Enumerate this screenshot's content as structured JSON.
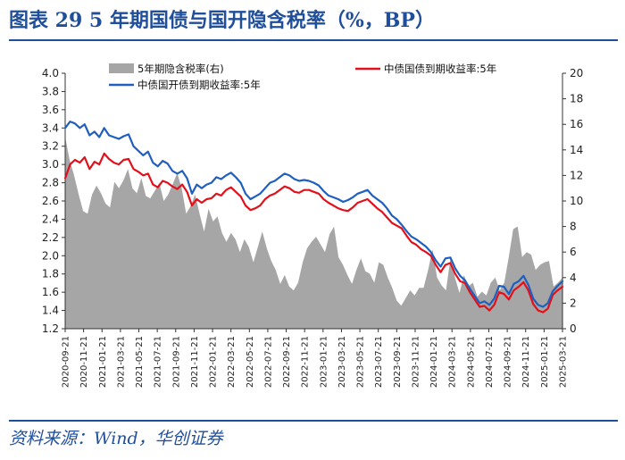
{
  "figure": {
    "title": "图表 29   5 年期国债与国开隐含税率（%，BP）",
    "source": "资料来源：Wind，华创证券"
  },
  "chart_data": {
    "type": "line+area",
    "title": "5 年期国债与国开隐含税率（%，BP）",
    "left_axis": {
      "label": "%",
      "range": [
        1.2,
        4.0
      ],
      "ticks": [
        "4.0",
        "3.8",
        "3.6",
        "3.4",
        "3.2",
        "3.0",
        "2.8",
        "2.6",
        "2.4",
        "2.2",
        "2.0",
        "1.8",
        "1.6",
        "1.4",
        "1.2"
      ]
    },
    "right_axis": {
      "label": "BP",
      "range": [
        0,
        20
      ],
      "ticks": [
        "20",
        "18",
        "16",
        "14",
        "12",
        "10",
        "8",
        "6",
        "4",
        "2",
        "0"
      ]
    },
    "x_labels": [
      "2020-09-21",
      "2020-11-21",
      "2021-01-21",
      "2021-03-21",
      "2021-05-21",
      "2021-07-21",
      "2021-09-21",
      "2021-11-21",
      "2022-01-21",
      "2022-03-21",
      "2022-05-21",
      "2022-07-21",
      "2022-09-21",
      "2022-11-21",
      "2023-01-21",
      "2023-03-21",
      "2023-05-21",
      "2023-07-21",
      "2023-09-21",
      "2023-11-21",
      "2024-01-21",
      "2024-03-21",
      "2024-05-21",
      "2024-07-21",
      "2024-09-21",
      "2024-11-21",
      "2025-01-21",
      "2025-03-21"
    ],
    "legend": {
      "tax": "5年期隐含税率(右)",
      "cgb": "中债国债到期收益率:5年",
      "cdb": "中债国开债到期收益率:5年"
    },
    "colors": {
      "tax": "#a6a6a6",
      "cgb": "#e2101b",
      "cdb": "#1f5fbf"
    },
    "series": [
      {
        "name": "5年期隐含税率(右)",
        "axis": "right",
        "kind": "area",
        "values": [
          15.0,
          13.2,
          12.0,
          10.5,
          9.2,
          9.0,
          10.5,
          11.2,
          10.6,
          9.8,
          9.5,
          11.5,
          11.0,
          11.6,
          12.5,
          11.0,
          10.6,
          11.8,
          10.4,
          10.2,
          10.8,
          11.4,
          10.0,
          10.5,
          11.3,
          12.2,
          11.0,
          9.0,
          9.6,
          10.5,
          9.0,
          7.6,
          9.4,
          8.4,
          8.8,
          7.5,
          6.8,
          7.5,
          7.0,
          6.0,
          7.0,
          6.4,
          5.2,
          6.4,
          7.6,
          6.3,
          5.3,
          4.6,
          3.5,
          4.2,
          3.3,
          3.0,
          3.6,
          5.2,
          6.3,
          6.8,
          7.2,
          6.6,
          6.0,
          7.4,
          8.0,
          5.6,
          5.0,
          4.2,
          3.5,
          4.6,
          5.5,
          4.5,
          4.3,
          3.6,
          5.2,
          5.0,
          4.0,
          3.2,
          2.2,
          1.8,
          2.4,
          3.0,
          2.6,
          3.2,
          3.2,
          4.6,
          6.2,
          4.0,
          3.4,
          3.0,
          5.5,
          4.0,
          2.8,
          4.2,
          3.3,
          3.6,
          2.5,
          2.9,
          2.6,
          3.6,
          4.0,
          3.0,
          3.6,
          5.6,
          7.8,
          8.0,
          5.6,
          6.0,
          5.8,
          4.6,
          5.0,
          5.2,
          5.3,
          3.3,
          3.6,
          4.0
        ]
      },
      {
        "name": "中债国债到期收益率:5年",
        "axis": "left",
        "kind": "line",
        "values": [
          2.85,
          3.0,
          3.05,
          3.02,
          3.08,
          2.95,
          3.03,
          3.0,
          3.12,
          3.06,
          3.02,
          3.0,
          3.05,
          3.06,
          2.95,
          2.92,
          2.88,
          2.9,
          2.78,
          2.75,
          2.82,
          2.8,
          2.76,
          2.73,
          2.78,
          2.7,
          2.55,
          2.62,
          2.58,
          2.62,
          2.63,
          2.68,
          2.66,
          2.72,
          2.75,
          2.7,
          2.65,
          2.55,
          2.5,
          2.52,
          2.55,
          2.62,
          2.66,
          2.68,
          2.72,
          2.76,
          2.74,
          2.7,
          2.69,
          2.72,
          2.72,
          2.7,
          2.68,
          2.62,
          2.58,
          2.55,
          2.52,
          2.5,
          2.49,
          2.53,
          2.58,
          2.6,
          2.62,
          2.57,
          2.52,
          2.48,
          2.42,
          2.36,
          2.33,
          2.3,
          2.22,
          2.15,
          2.12,
          2.07,
          2.04,
          2.0,
          1.9,
          1.82,
          1.9,
          1.92,
          1.8,
          1.72,
          1.7,
          1.6,
          1.52,
          1.44,
          1.45,
          1.4,
          1.46,
          1.6,
          1.58,
          1.52,
          1.62,
          1.66,
          1.71,
          1.62,
          1.47,
          1.4,
          1.38,
          1.42,
          1.57,
          1.62,
          1.66
        ]
      },
      {
        "name": "中债国开债到期收益率:5年",
        "axis": "left",
        "kind": "line",
        "values": [
          3.4,
          3.47,
          3.45,
          3.4,
          3.44,
          3.32,
          3.36,
          3.3,
          3.4,
          3.32,
          3.3,
          3.28,
          3.31,
          3.33,
          3.2,
          3.15,
          3.1,
          3.14,
          3.02,
          2.98,
          3.04,
          3.01,
          2.93,
          2.9,
          2.93,
          2.85,
          2.68,
          2.78,
          2.74,
          2.78,
          2.8,
          2.86,
          2.84,
          2.88,
          2.91,
          2.86,
          2.8,
          2.68,
          2.62,
          2.65,
          2.68,
          2.74,
          2.8,
          2.82,
          2.86,
          2.9,
          2.88,
          2.84,
          2.82,
          2.83,
          2.82,
          2.8,
          2.77,
          2.71,
          2.66,
          2.64,
          2.62,
          2.59,
          2.61,
          2.64,
          2.68,
          2.7,
          2.72,
          2.66,
          2.62,
          2.58,
          2.52,
          2.44,
          2.4,
          2.34,
          2.27,
          2.21,
          2.18,
          2.14,
          2.1,
          2.04,
          1.95,
          1.88,
          1.97,
          1.98,
          1.86,
          1.78,
          1.73,
          1.64,
          1.56,
          1.48,
          1.5,
          1.46,
          1.53,
          1.67,
          1.66,
          1.58,
          1.69,
          1.72,
          1.78,
          1.68,
          1.53,
          1.46,
          1.44,
          1.48,
          1.61,
          1.67,
          1.72
        ]
      }
    ]
  }
}
